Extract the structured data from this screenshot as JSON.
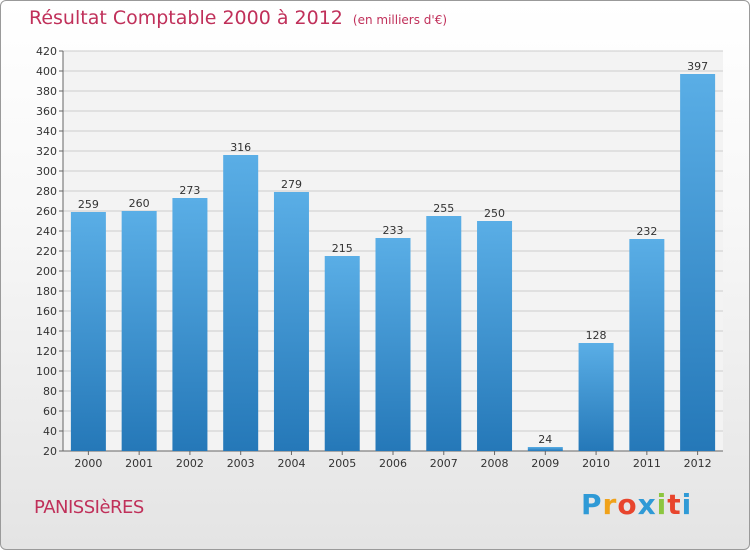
{
  "header": {
    "title": "Résultat Comptable 2000 à 2012",
    "subtitle": "(en milliers d'€)"
  },
  "commune": "PANISSIèRES",
  "logo": {
    "letters": [
      "P",
      "r",
      "o",
      "x",
      "i",
      "t",
      "i"
    ],
    "colors": [
      "#2f9ad6",
      "#f0a21a",
      "#e8452d",
      "#2f9ad6",
      "#8cc63f",
      "#e8452d",
      "#2f9ad6"
    ]
  },
  "colors": {
    "bar_light": "#5aaee6",
    "bar_dark": "#2578b8",
    "title": "#c0305a",
    "grid": "#cccccc"
  },
  "chart_data": {
    "type": "bar",
    "categories": [
      "2000",
      "2001",
      "2002",
      "2003",
      "2004",
      "2005",
      "2006",
      "2007",
      "2008",
      "2009",
      "2010",
      "2011",
      "2012"
    ],
    "values": [
      259,
      260,
      273,
      316,
      279,
      215,
      233,
      255,
      250,
      24,
      128,
      232,
      397
    ],
    "ylim": [
      20,
      420
    ],
    "yticks": [
      "20",
      "40",
      "60",
      "80",
      "100",
      "120",
      "140",
      "160",
      "180",
      "200",
      "220",
      "240",
      "260",
      "280",
      "300",
      "320",
      "340",
      "360",
      "380",
      "400",
      "420"
    ],
    "grid": true,
    "xlabel": "",
    "ylabel": ""
  }
}
